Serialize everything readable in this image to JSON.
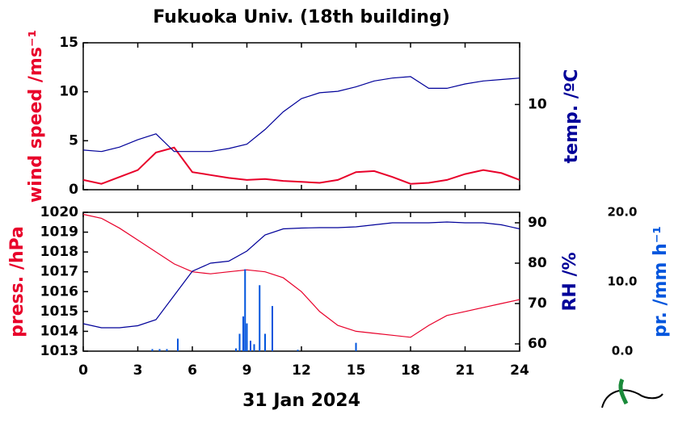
{
  "title": "Fukuoka Univ. (18th building)",
  "xlabel": "31 Jan 2024",
  "chart_data": [
    {
      "type": "line",
      "x": [
        0,
        1,
        2,
        3,
        4,
        5,
        6,
        7,
        8,
        9,
        10,
        11,
        12,
        13,
        14,
        15,
        16,
        17,
        18,
        19,
        20,
        21,
        22,
        23,
        24
      ],
      "xlim": [
        0,
        24
      ],
      "xticks": [
        0,
        3,
        6,
        9,
        12,
        15,
        18,
        21,
        24
      ],
      "ylim": [
        0,
        15
      ],
      "yticks": [
        0,
        5,
        10,
        15
      ],
      "y2lim": [
        4.2,
        14.2
      ],
      "y2ticks": [
        10
      ],
      "ylabel": "wind speed /ms⁻¹",
      "y2label": "temp. /ºC",
      "series": [
        {
          "name": "wind speed",
          "color": "#e8002a",
          "axis": "y",
          "values": [
            1.0,
            0.6,
            1.3,
            2.0,
            3.8,
            4.3,
            1.8,
            1.5,
            1.2,
            1.0,
            1.1,
            0.9,
            0.8,
            0.7,
            1.0,
            1.8,
            1.9,
            1.3,
            0.6,
            0.7,
            1.0,
            1.6,
            2.0,
            1.7,
            1.0
          ]
        },
        {
          "name": "temp",
          "color": "#000099",
          "axis": "y2",
          "values": [
            6.9,
            6.8,
            7.1,
            7.6,
            8.0,
            6.8,
            6.8,
            6.8,
            7.0,
            7.3,
            8.3,
            9.5,
            10.4,
            10.8,
            10.9,
            11.2,
            11.6,
            11.8,
            11.9,
            11.1,
            11.1,
            11.4,
            11.6,
            11.7,
            11.8
          ]
        }
      ]
    },
    {
      "type": "line",
      "x": [
        0,
        1,
        2,
        3,
        4,
        5,
        6,
        7,
        8,
        9,
        10,
        11,
        12,
        13,
        14,
        15,
        16,
        17,
        18,
        19,
        20,
        21,
        22,
        23,
        24
      ],
      "xlim": [
        0,
        24
      ],
      "xticks": [
        0,
        3,
        6,
        9,
        12,
        15,
        18,
        21,
        24
      ],
      "ylim": [
        1013,
        1020
      ],
      "yticks": [
        1013,
        1014,
        1015,
        1016,
        1017,
        1018,
        1019,
        1020
      ],
      "y2lim": [
        58.2,
        92.6
      ],
      "y2ticks": [
        60,
        70,
        80,
        90
      ],
      "y3lim": [
        0,
        20
      ],
      "y3ticks": [
        {
          "value": 0,
          "label": "0.0"
        },
        {
          "value": 10,
          "label": "10.0"
        },
        {
          "value": 20,
          "label": "20.0"
        }
      ],
      "ylabel": "press. /hPa",
      "y2label": "RH /%",
      "y3label": "pr. /mm h⁻¹",
      "series": [
        {
          "name": "pressure",
          "color": "#e8002a",
          "axis": "y",
          "values": [
            1019.9,
            1019.7,
            1019.2,
            1018.6,
            1018.0,
            1017.4,
            1017.0,
            1016.9,
            1017.0,
            1017.1,
            1017.0,
            1016.7,
            1016.0,
            1015.0,
            1014.3,
            1014.0,
            1013.9,
            1013.8,
            1013.7,
            1014.3,
            1014.8,
            1015.0,
            1015.2,
            1015.4,
            1015.6
          ]
        },
        {
          "name": "RH",
          "color": "#000099",
          "axis": "y2",
          "values": [
            65,
            64,
            64,
            64.5,
            66,
            72,
            78,
            80,
            80.5,
            83,
            87,
            88.5,
            88.7,
            88.8,
            88.8,
            89,
            89.5,
            90,
            90,
            90,
            90.2,
            90,
            90,
            89.5,
            88.5
          ]
        },
        {
          "name": "precipitation",
          "color": "#0055dd",
          "axis": "y3",
          "type": "bar",
          "x": [
            3.8,
            4.2,
            4.6,
            5.2,
            8.4,
            8.6,
            8.8,
            8.9,
            9.0,
            9.2,
            9.4,
            9.7,
            10.0,
            10.4,
            11.8,
            15.0
          ],
          "values": [
            0.3,
            0.3,
            0.3,
            1.8,
            0.4,
            2.5,
            5.0,
            11.8,
            4.0,
            1.5,
            1.0,
            9.5,
            2.5,
            6.5,
            0.2,
            1.2
          ]
        }
      ]
    }
  ]
}
